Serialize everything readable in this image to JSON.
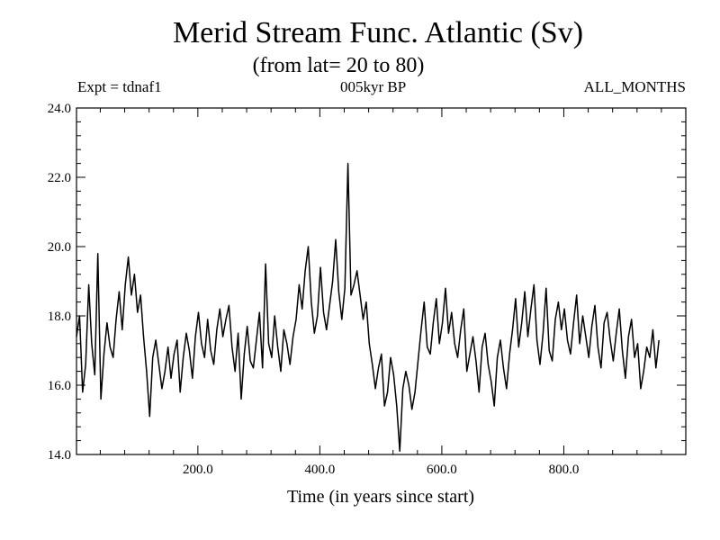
{
  "chart_data": {
    "type": "line",
    "title": "Merid Stream Func. Atlantic (Sv)",
    "subtitle": "(from lat= 20 to 80)",
    "labels": {
      "left": "Expt = tdnaf1",
      "center": "005kyr BP",
      "right": "ALL_MONTHS"
    },
    "xlabel": "Time (in years since start)",
    "ylabel": "",
    "xlim": [
      1,
      1000
    ],
    "ylim": [
      14.0,
      24.0
    ],
    "xticks": [
      200,
      400,
      600,
      800
    ],
    "xtick_labels": [
      "200.0",
      "400.0",
      "600.0",
      "800.0"
    ],
    "yticks": [
      14,
      16,
      18,
      20,
      22,
      24
    ],
    "ytick_labels": [
      "14.0",
      "16.0",
      "18.0",
      "20.0",
      "22.0",
      "24.0"
    ],
    "grid": false,
    "legend": "none",
    "line_color": "#000000",
    "series": [
      {
        "x_start": 1,
        "x_step": 5,
        "values": [
          17.4,
          18.0,
          15.8,
          16.6,
          18.9,
          17.2,
          16.3,
          19.8,
          15.6,
          16.9,
          17.8,
          17.1,
          16.8,
          17.9,
          18.7,
          17.6,
          18.9,
          19.7,
          18.6,
          19.2,
          18.1,
          18.6,
          17.4,
          16.4,
          15.1,
          16.8,
          17.3,
          16.6,
          15.9,
          16.4,
          17.1,
          16.2,
          16.9,
          17.3,
          15.8,
          16.8,
          17.5,
          17.0,
          16.2,
          17.4,
          18.1,
          17.2,
          16.8,
          17.9,
          17.0,
          16.6,
          17.6,
          18.2,
          17.4,
          17.9,
          18.3,
          17.1,
          16.4,
          17.5,
          15.6,
          16.9,
          17.7,
          16.7,
          16.5,
          17.3,
          18.1,
          16.5,
          19.5,
          17.2,
          16.8,
          18.0,
          17.1,
          16.4,
          17.6,
          17.2,
          16.6,
          17.4,
          17.9,
          18.9,
          18.2,
          19.3,
          20.0,
          18.4,
          17.5,
          18.0,
          19.4,
          18.1,
          17.6,
          18.3,
          19.0,
          20.2,
          18.7,
          17.9,
          18.8,
          22.4,
          18.6,
          18.9,
          19.3,
          18.6,
          17.9,
          18.4,
          17.2,
          16.6,
          15.9,
          16.5,
          16.9,
          15.4,
          15.8,
          16.8,
          16.3,
          15.4,
          14.1,
          15.9,
          16.4,
          16.0,
          15.3,
          15.8,
          16.7,
          17.6,
          18.4,
          17.1,
          16.9,
          17.8,
          18.5,
          17.2,
          17.8,
          18.8,
          17.5,
          18.1,
          17.2,
          16.8,
          17.6,
          18.2,
          16.4,
          16.9,
          17.4,
          16.7,
          15.8,
          17.1,
          17.5,
          16.6,
          16.1,
          15.4,
          16.8,
          17.3,
          16.5,
          15.9,
          16.9,
          17.6,
          18.5,
          17.1,
          17.8,
          18.7,
          17.4,
          18.2,
          18.9,
          17.3,
          16.6,
          17.5,
          18.8,
          17.0,
          16.7,
          17.9,
          18.4,
          17.6,
          18.2,
          17.3,
          16.9,
          17.8,
          18.6,
          17.2,
          18.0,
          17.4,
          16.8,
          17.7,
          18.3,
          17.1,
          16.5,
          17.8,
          18.1,
          17.3,
          16.7,
          17.5,
          18.2,
          17.0,
          16.2,
          17.4,
          17.9,
          16.8,
          17.2,
          15.9,
          16.4,
          17.1,
          16.8,
          17.6,
          16.5,
          17.3
        ]
      }
    ]
  }
}
